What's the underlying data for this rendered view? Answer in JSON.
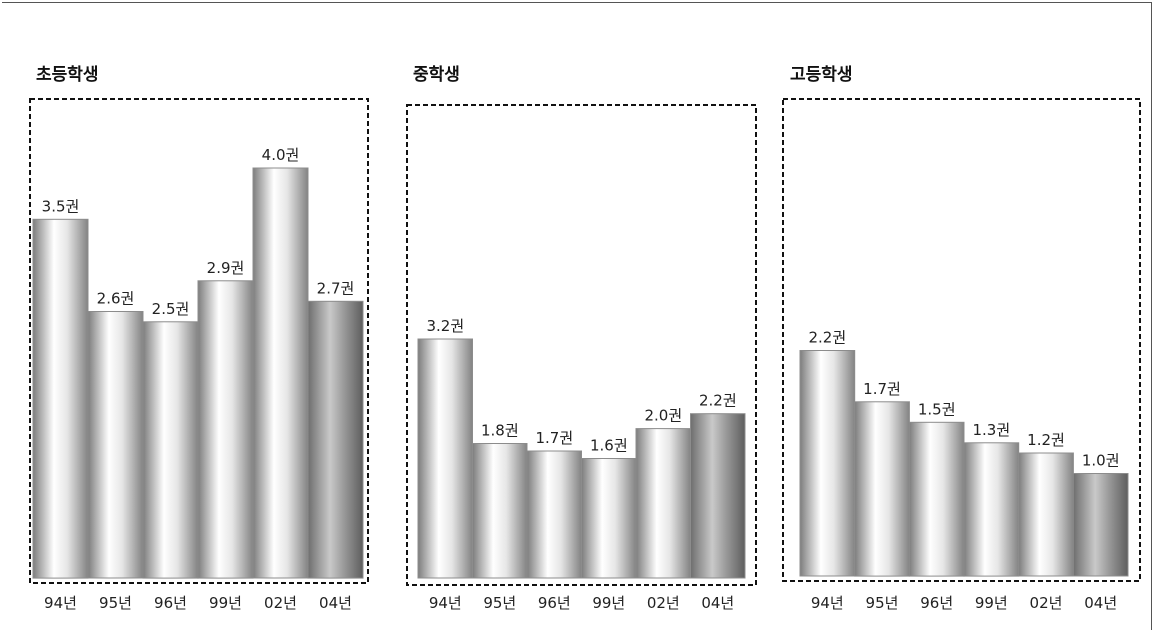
{
  "chart_data": [
    {
      "type": "bar",
      "title": "초등학생",
      "categories": [
        "94년",
        "95년",
        "96년",
        "99년",
        "02년",
        "04년"
      ],
      "values": [
        3.5,
        2.6,
        2.5,
        2.9,
        4.0,
        2.7
      ],
      "data_labels": [
        "3.5권",
        "2.6권",
        "2.5권",
        "2.9권",
        "4.0권",
        "2.7권"
      ],
      "ylim": [
        0,
        4.0
      ],
      "grid": false,
      "legend": "none"
    },
    {
      "type": "bar",
      "title": "중학생",
      "categories": [
        "94년",
        "95년",
        "96년",
        "99년",
        "02년",
        "04년"
      ],
      "values": [
        3.2,
        1.8,
        1.7,
        1.6,
        2.0,
        2.2
      ],
      "data_labels": [
        "3.2권",
        "1.8권",
        "1.7권",
        "1.6권",
        "2.0권",
        "2.2권"
      ],
      "ylim": [
        0,
        4.0
      ],
      "grid": false,
      "legend": "none"
    },
    {
      "type": "bar",
      "title": "고등학생",
      "categories": [
        "94년",
        "95년",
        "96년",
        "99년",
        "02년",
        "04년"
      ],
      "values": [
        2.2,
        1.7,
        1.5,
        1.3,
        1.2,
        1.0
      ],
      "data_labels": [
        "2.2권",
        "1.7권",
        "1.5권",
        "1.3권",
        "1.2권",
        "1.0권"
      ],
      "ylim": [
        0,
        4.0
      ],
      "grid": false,
      "legend": "none"
    }
  ],
  "colors": {
    "bar_light_edge": "#8c8c8c",
    "bar_highlight": "#ffffff",
    "bar_last_mid": "#7a7a7a",
    "frame_dash": "#111111",
    "text": "#222222"
  }
}
